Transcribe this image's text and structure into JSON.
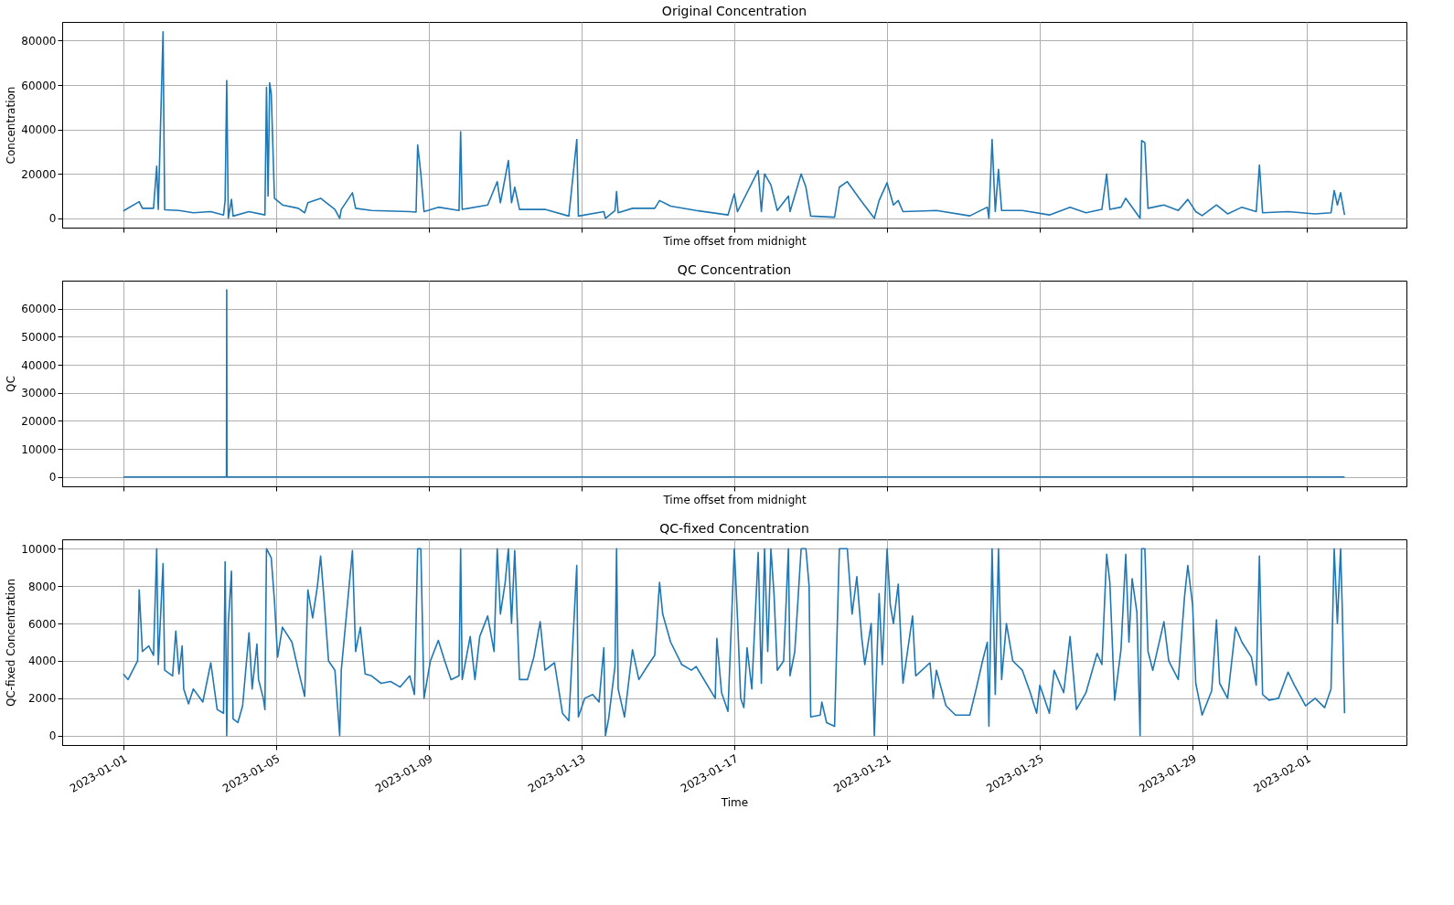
{
  "chart_data": [
    {
      "type": "line",
      "title": "Original Concentration",
      "xlabel": "Time offset from midnight",
      "ylabel": "Concentration",
      "grid": true,
      "tick_labels": "y",
      "xlim": [
        "2022-12-30T09:36",
        "2023-02-03T14:24"
      ],
      "xticks": [
        "2023-01-01",
        "2023-01-05",
        "2023-01-09",
        "2023-01-13",
        "2023-01-17",
        "2023-01-21",
        "2023-01-25",
        "2023-01-29",
        "2023-02-01"
      ],
      "ylim": [
        -4200,
        88400
      ],
      "yticks": [
        0,
        20000,
        40000,
        60000,
        80000
      ],
      "series": [
        {
          "color": "#1f77b4",
          "x": [
            "2023-01-01T00:00",
            "2023-01-01T10:00",
            "2023-01-01T12:00",
            "2023-01-01T19:00",
            "2023-01-01T21:00",
            "2023-01-01T22:00",
            "2023-01-02T01:00",
            "2023-01-02T02:00",
            "2023-01-02T11:00",
            "2023-01-02T20:00",
            "2023-01-03T07:00",
            "2023-01-03T15:00",
            "2023-01-03T16:00",
            "2023-01-03T17:00",
            "2023-01-03T18:00",
            "2023-01-03T20:00",
            "2023-01-03T21:00",
            "2023-01-04T07:00",
            "2023-01-04T17:00",
            "2023-01-04T18:00",
            "2023-01-04T19:00",
            "2023-01-04T20:00",
            "2023-01-04T21:00",
            "2023-01-04T23:00",
            "2023-01-05T04:00",
            "2023-01-05T14:00",
            "2023-01-05T18:00",
            "2023-01-05T20:00",
            "2023-01-06T04:00",
            "2023-01-06T13:00",
            "2023-01-06T16:00",
            "2023-01-06T17:00",
            "2023-01-07T00:00",
            "2023-01-07T02:00",
            "2023-01-07T12:00",
            "2023-01-08T12:00",
            "2023-01-08T16:00",
            "2023-01-08T17:00",
            "2023-01-08T19:00",
            "2023-01-08T21:00",
            "2023-01-09T06:00",
            "2023-01-09T19:00",
            "2023-01-09T20:00",
            "2023-01-09T21:00",
            "2023-01-10T13:00",
            "2023-01-10T19:00",
            "2023-01-10T21:00",
            "2023-01-11T02:00",
            "2023-01-11T04:00",
            "2023-01-11T06:00",
            "2023-01-11T09:00",
            "2023-01-12T01:00",
            "2023-01-12T16:00",
            "2023-01-12T21:00",
            "2023-01-12T22:00",
            "2023-01-13T14:00",
            "2023-01-13T15:00",
            "2023-01-13T21:00",
            "2023-01-13T22:00",
            "2023-01-13T23:00",
            "2023-01-14T08:00",
            "2023-01-14T22:00",
            "2023-01-15T01:00",
            "2023-01-15T08:00",
            "2023-01-16T00:00",
            "2023-01-16T20:00",
            "2023-01-17T00:00",
            "2023-01-17T02:00",
            "2023-01-17T15:00",
            "2023-01-17T17:00",
            "2023-01-17T19:00",
            "2023-01-17T23:00",
            "2023-01-18T03:00",
            "2023-01-18T10:00",
            "2023-01-18T11:00",
            "2023-01-18T18:00",
            "2023-01-18T21:00",
            "2023-01-19T00:00",
            "2023-01-19T15:00",
            "2023-01-19T18:00",
            "2023-01-19T23:00",
            "2023-01-20T08:00",
            "2023-01-20T16:00",
            "2023-01-20T19:00",
            "2023-01-21T00:00",
            "2023-01-21T04:00",
            "2023-01-21T07:00",
            "2023-01-21T10:00",
            "2023-01-22T07:00",
            "2023-01-23T04:00",
            "2023-01-23T15:00",
            "2023-01-23T16:00",
            "2023-01-23T18:00",
            "2023-01-23T20:00",
            "2023-01-23T22:00",
            "2023-01-24T00:00",
            "2023-01-24T13:00",
            "2023-01-25T06:00",
            "2023-01-25T19:00",
            "2023-01-26T05:00",
            "2023-01-26T15:00",
            "2023-01-26T18:00",
            "2023-01-26T20:00",
            "2023-01-27T03:00",
            "2023-01-27T06:00",
            "2023-01-27T15:00",
            "2023-01-27T16:00",
            "2023-01-27T18:00",
            "2023-01-27T20:00",
            "2023-01-28T06:00",
            "2023-01-28T15:00",
            "2023-01-28T21:00",
            "2023-01-29T02:00",
            "2023-01-29T06:00",
            "2023-01-29T15:00",
            "2023-01-29T22:00",
            "2023-01-30T07:00",
            "2023-01-30T16:00",
            "2023-01-30T18:00",
            "2023-01-30T20:00",
            "2023-01-31T12:00",
            "2023-02-01T05:00",
            "2023-02-01T15:00",
            "2023-02-01T17:00",
            "2023-02-01T19:00",
            "2023-02-01T21:00",
            "2023-02-01T23:30"
          ],
          "values": [
            3300,
            7500,
            4500,
            4500,
            23500,
            4000,
            84000,
            3800,
            3500,
            2500,
            3000,
            1500,
            8000,
            62000,
            0,
            8500,
            1000,
            3000,
            1500,
            59000,
            10000,
            61000,
            56000,
            9000,
            6000,
            4500,
            2500,
            7000,
            9000,
            4000,
            0,
            4000,
            11500,
            4500,
            3500,
            3000,
            2800,
            33000,
            20000,
            3000,
            5000,
            3500,
            39000,
            4000,
            6000,
            16500,
            7000,
            26000,
            7000,
            14000,
            4000,
            4000,
            1000,
            35500,
            1000,
            3000,
            0,
            3500,
            12000,
            2500,
            4500,
            4500,
            8000,
            5500,
            3500,
            1500,
            11000,
            3000,
            21500,
            3000,
            20000,
            15000,
            3500,
            10000,
            3000,
            20000,
            14000,
            1000,
            500,
            14000,
            16500,
            7500,
            0,
            8000,
            16000,
            6000,
            8000,
            3000,
            3500,
            1100,
            5000,
            0,
            35500,
            3000,
            22000,
            3500,
            3500,
            1500,
            5000,
            2500,
            4000,
            20000,
            4000,
            5000,
            9000,
            0,
            35000,
            34000,
            4500,
            6000,
            3500,
            8500,
            3000,
            1200,
            6000,
            2000,
            5000,
            3000,
            24000,
            2500,
            3000,
            2000,
            2500,
            12500,
            6000,
            11500,
            1500
          ]
        }
      ]
    },
    {
      "type": "line",
      "title": "QC Concentration",
      "xlabel": "Time offset from midnight",
      "ylabel": "QC",
      "grid": true,
      "tick_labels": "y",
      "xlim": [
        "2022-12-30T09:36",
        "2023-02-03T14:24"
      ],
      "xticks": [
        "2023-01-01",
        "2023-01-05",
        "2023-01-09",
        "2023-01-13",
        "2023-01-17",
        "2023-01-21",
        "2023-01-25",
        "2023-01-29",
        "2023-02-01"
      ],
      "ylim": [
        -3350,
        70000
      ],
      "yticks": [
        0,
        10000,
        20000,
        30000,
        40000,
        50000,
        60000
      ],
      "series": [
        {
          "color": "#1f77b4",
          "x": [
            "2023-01-01T00:00",
            "2023-01-03T16:50",
            "2023-01-03T17:00",
            "2023-01-03T17:10",
            "2023-02-01T23:30"
          ],
          "values": [
            0,
            0,
            66700,
            0,
            0
          ]
        }
      ]
    },
    {
      "type": "line",
      "title": "QC-fixed Concentration",
      "xlabel": "Time",
      "ylabel": "QC-fixed Concentration",
      "grid": true,
      "xlim": [
        "2022-12-30T09:36",
        "2023-02-03T14:24"
      ],
      "xticks": [
        "2023-01-01",
        "2023-01-05",
        "2023-01-09",
        "2023-01-13",
        "2023-01-17",
        "2023-01-21",
        "2023-01-25",
        "2023-01-29",
        "2023-02-01"
      ],
      "ylim": [
        -500,
        10500
      ],
      "yticks": [
        0,
        2000,
        4000,
        6000,
        8000,
        10000
      ],
      "series": [
        {
          "color": "#1f77b4",
          "x": [
            "2023-01-01T00:00",
            "2023-01-01T03:00",
            "2023-01-01T09:00",
            "2023-01-01T10:00",
            "2023-01-01T12:00",
            "2023-01-01T16:00",
            "2023-01-01T19:00",
            "2023-01-01T21:00",
            "2023-01-01T22:00",
            "2023-01-02T01:00",
            "2023-01-02T02:00",
            "2023-01-02T07:00",
            "2023-01-02T09:00",
            "2023-01-02T11:00",
            "2023-01-02T13:00",
            "2023-01-02T14:00",
            "2023-01-02T17:00",
            "2023-01-02T20:00",
            "2023-01-03T02:00",
            "2023-01-03T07:00",
            "2023-01-03T11:00",
            "2023-01-03T15:00",
            "2023-01-03T16:00",
            "2023-01-03T17:00",
            "2023-01-03T18:00",
            "2023-01-03T20:00",
            "2023-01-03T21:00",
            "2023-01-04T00:00",
            "2023-01-04T03:00",
            "2023-01-04T07:00",
            "2023-01-04T09:00",
            "2023-01-04T12:00",
            "2023-01-04T13:00",
            "2023-01-04T16:00",
            "2023-01-04T17:00",
            "2023-01-04T18:00",
            "2023-01-04T21:00",
            "2023-01-04T23:00",
            "2023-01-05T01:00",
            "2023-01-05T04:00",
            "2023-01-05T10:00",
            "2023-01-05T14:00",
            "2023-01-05T18:00",
            "2023-01-05T20:00",
            "2023-01-05T23:00",
            "2023-01-06T02:00",
            "2023-01-06T04:00",
            "2023-01-06T06:00",
            "2023-01-06T09:00",
            "2023-01-06T13:00",
            "2023-01-06T16:00",
            "2023-01-06T17:00",
            "2023-01-07T00:00",
            "2023-01-07T02:00",
            "2023-01-07T05:00",
            "2023-01-07T08:00",
            "2023-01-07T12:00",
            "2023-01-07T18:00",
            "2023-01-08T00:00",
            "2023-01-08T06:00",
            "2023-01-08T12:00",
            "2023-01-08T15:00",
            "2023-01-08T17:00",
            "2023-01-08T19:00",
            "2023-01-08T21:00",
            "2023-01-09T01:00",
            "2023-01-09T06:00",
            "2023-01-09T10:00",
            "2023-01-09T14:00",
            "2023-01-09T19:00",
            "2023-01-09T20:00",
            "2023-01-09T21:00",
            "2023-01-10T02:00",
            "2023-01-10T05:00",
            "2023-01-10T08:00",
            "2023-01-10T13:00",
            "2023-01-10T17:00",
            "2023-01-10T19:00",
            "2023-01-10T21:00",
            "2023-01-11T00:00",
            "2023-01-11T02:00",
            "2023-01-11T04:00",
            "2023-01-11T06:00",
            "2023-01-11T09:00",
            "2023-01-11T14:00",
            "2023-01-11T18:00",
            "2023-01-11T22:00",
            "2023-01-12T01:00",
            "2023-01-12T07:00",
            "2023-01-12T12:00",
            "2023-01-12T16:00",
            "2023-01-12T21:00",
            "2023-01-12T22:00",
            "2023-01-13T02:00",
            "2023-01-13T07:00",
            "2023-01-13T11:00",
            "2023-01-13T14:00",
            "2023-01-13T15:00",
            "2023-01-13T17:00",
            "2023-01-13T21:00",
            "2023-01-13T22:00",
            "2023-01-13T23:00",
            "2023-01-14T03:00",
            "2023-01-14T08:00",
            "2023-01-14T12:00",
            "2023-01-14T18:00",
            "2023-01-14T22:00",
            "2023-01-15T01:00",
            "2023-01-15T03:00",
            "2023-01-15T08:00",
            "2023-01-15T15:00",
            "2023-01-15T21:00",
            "2023-01-16T00:00",
            "2023-01-16T12:00",
            "2023-01-16T13:00",
            "2023-01-16T16:00",
            "2023-01-16T20:00",
            "2023-01-17T00:00",
            "2023-01-17T02:00",
            "2023-01-17T04:00",
            "2023-01-17T06:00",
            "2023-01-17T08:00",
            "2023-01-17T11:00",
            "2023-01-17T15:00",
            "2023-01-17T17:00",
            "2023-01-17T19:00",
            "2023-01-17T21:00",
            "2023-01-17T23:00",
            "2023-01-18T01:00",
            "2023-01-18T03:00",
            "2023-01-18T07:00",
            "2023-01-18T10:00",
            "2023-01-18T11:00",
            "2023-01-18T14:00",
            "2023-01-18T18:00",
            "2023-01-18T21:00",
            "2023-01-18T23:00",
            "2023-01-19T00:00",
            "2023-01-19T06:00",
            "2023-01-19T07:00",
            "2023-01-19T10:00",
            "2023-01-19T15:00",
            "2023-01-19T18:00",
            "2023-01-19T23:00",
            "2023-01-20T02:00",
            "2023-01-20T05:00",
            "2023-01-20T08:00",
            "2023-01-20T10:00",
            "2023-01-20T14:00",
            "2023-01-20T16:00",
            "2023-01-20T19:00",
            "2023-01-20T21:00",
            "2023-01-21T00:00",
            "2023-01-21T02:00",
            "2023-01-21T04:00",
            "2023-01-21T07:00",
            "2023-01-21T10:00",
            "2023-01-21T16:00",
            "2023-01-21T18:00",
            "2023-01-22T03:00",
            "2023-01-22T05:00",
            "2023-01-22T07:00",
            "2023-01-22T13:00",
            "2023-01-22T19:00",
            "2023-01-23T04:00",
            "2023-01-23T08:00",
            "2023-01-23T12:00",
            "2023-01-23T15:00",
            "2023-01-23T16:00",
            "2023-01-23T18:00",
            "2023-01-23T20:00",
            "2023-01-23T22:00",
            "2023-01-24T00:00",
            "2023-01-24T03:00",
            "2023-01-24T07:00",
            "2023-01-24T13:00",
            "2023-01-24T18:00",
            "2023-01-24T22:00",
            "2023-01-25T00:00",
            "2023-01-25T06:00",
            "2023-01-25T09:00",
            "2023-01-25T15:00",
            "2023-01-25T19:00",
            "2023-01-25T23:00",
            "2023-01-26T05:00",
            "2023-01-26T12:00",
            "2023-01-26T15:00",
            "2023-01-26T18:00",
            "2023-01-26T20:00",
            "2023-01-26T23:00",
            "2023-01-27T03:00",
            "2023-01-27T06:00",
            "2023-01-27T08:00",
            "2023-01-27T10:00",
            "2023-01-27T13:00",
            "2023-01-27T15:00",
            "2023-01-27T16:00",
            "2023-01-27T18:00",
            "2023-01-27T20:00",
            "2023-01-27T23:00",
            "2023-01-28T06:00",
            "2023-01-28T09:00",
            "2023-01-28T15:00",
            "2023-01-28T19:00",
            "2023-01-28T21:00",
            "2023-01-29T00:00",
            "2023-01-29T02:00",
            "2023-01-29T06:00",
            "2023-01-29T12:00",
            "2023-01-29T15:00",
            "2023-01-29T17:00",
            "2023-01-29T22:00",
            "2023-01-30T03:00",
            "2023-01-30T07:00",
            "2023-01-30T13:00",
            "2023-01-30T16:00",
            "2023-01-30T18:00",
            "2023-01-30T20:00",
            "2023-01-31T00:00",
            "2023-01-31T06:00",
            "2023-01-31T12:00",
            "2023-01-31T16:00",
            "2023-01-31T23:00",
            "2023-02-01T05:00",
            "2023-02-01T11:00",
            "2023-02-01T15:00",
            "2023-02-01T17:00",
            "2023-02-01T19:00",
            "2023-02-01T21:00",
            "2023-02-01T22:00",
            "2023-02-01T23:30"
          ],
          "values": [
            3300,
            3000,
            4000,
            7800,
            4500,
            4800,
            4300,
            10000,
            3800,
            9200,
            3500,
            3200,
            5600,
            3300,
            4800,
            2500,
            1700,
            2500,
            1800,
            3900,
            1400,
            1200,
            9300,
            0,
            6000,
            8800,
            900,
            700,
            1600,
            5500,
            2500,
            4900,
            3000,
            2000,
            1400,
            10000,
            9500,
            7200,
            4200,
            5800,
            5000,
            3500,
            2100,
            7800,
            6300,
            8000,
            9600,
            7500,
            4000,
            3500,
            0,
            3500,
            9900,
            4500,
            5800,
            3300,
            3200,
            2800,
            2900,
            2600,
            3200,
            2200,
            10000,
            10000,
            2000,
            4000,
            5100,
            4000,
            3000,
            3200,
            10000,
            3000,
            5300,
            3000,
            5300,
            6400,
            4500,
            10000,
            6500,
            8200,
            10000,
            6000,
            9900,
            3000,
            3000,
            4200,
            6100,
            3500,
            3900,
            1200,
            800,
            9100,
            1000,
            2000,
            2200,
            1800,
            4700,
            0,
            900,
            3700,
            10000,
            2500,
            1000,
            4600,
            3000,
            3800,
            4300,
            8200,
            6500,
            5000,
            3800,
            3500,
            3700,
            2000,
            5200,
            2300,
            1300,
            10000,
            6300,
            2000,
            1500,
            4700,
            2500,
            9800,
            2800,
            10000,
            4500,
            10000,
            7500,
            3500,
            4000,
            10000,
            3200,
            4500,
            10000,
            10000,
            8000,
            1000,
            1100,
            1800,
            700,
            500,
            10000,
            10000,
            6500,
            8500,
            5300,
            3800,
            6000,
            0,
            7600,
            3800,
            10000,
            7000,
            6000,
            8100,
            2800,
            6400,
            3200,
            3900,
            2000,
            3500,
            1600,
            1100,
            1100,
            2500,
            4000,
            5000,
            500,
            10000,
            2200,
            10000,
            3000,
            6000,
            4000,
            3500,
            2300,
            1200,
            2700,
            1200,
            3500,
            2300,
            5300,
            1400,
            2300,
            4400,
            3800,
            9700,
            8200,
            1900,
            4600,
            9700,
            5000,
            8400,
            6600,
            0,
            10000,
            10000,
            4500,
            3500,
            6100,
            4000,
            3000,
            7500,
            9100,
            7000,
            2800,
            1100,
            2400,
            6200,
            2800,
            2000,
            5800,
            5000,
            4200,
            2700,
            9600,
            2200,
            1900,
            2000,
            3400,
            2700,
            1600,
            2000,
            1500,
            2500,
            10000,
            6000,
            10000,
            7000,
            1200
          ]
        }
      ]
    }
  ]
}
